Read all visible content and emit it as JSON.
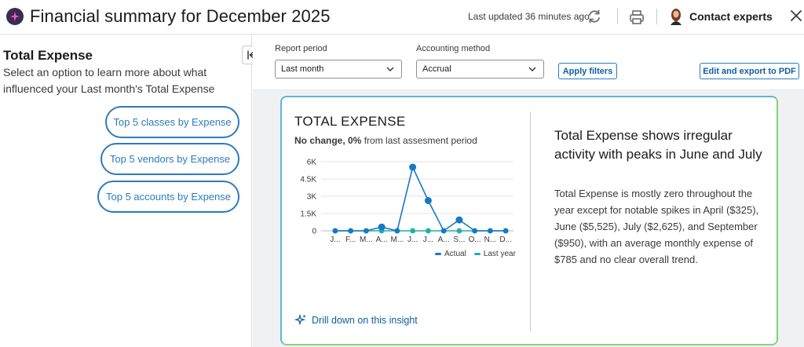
{
  "header": {
    "title": "Financial summary for December 2025",
    "last_updated": "Last updated 36 minutes ago",
    "contact_label": "Contact experts"
  },
  "left": {
    "heading": "Total Expense",
    "description": "Select an option to learn more about what influenced your Last month's Total Expense",
    "buttons": [
      "Top 5 classes by Expense",
      "Top 5 vendors by Expense",
      "Top 5 accounts by Expense"
    ]
  },
  "filters": {
    "report_period_label": "Report period",
    "report_period_value": "Last month",
    "accounting_method_label": "Accounting method",
    "accounting_method_value": "Accrual",
    "apply_label": "Apply filters",
    "export_label": "Edit and export to PDF"
  },
  "card": {
    "title": "TOTAL EXPENSE",
    "subtitle_bold": "No change, 0%",
    "subtitle_rest": " from last assesment period",
    "drill_label": "Drill down on this insight",
    "insight_title": "Total Expense shows irregular activity with peaks in June and July",
    "insight_body": "Total Expense is mostly zero throughout the year except for notable spikes in April ($325), June ($5,525), July ($2,625), and September ($950), with an average monthly expense of $785 and no clear overall trend."
  },
  "colors": {
    "accent": "#2c7bbf",
    "actual": "#1679c4",
    "last_year": "#19b3a8"
  },
  "chart_data": {
    "type": "line",
    "title": "TOTAL EXPENSE",
    "categories": [
      "J...",
      "F...",
      "M...",
      "A...",
      "M...",
      "J...",
      "J...",
      "A...",
      "S...",
      "O...",
      "N...",
      "D..."
    ],
    "y_tick_labels": [
      "6K",
      "4.5K",
      "3K",
      "1.5K",
      "0"
    ],
    "ylim": [
      0,
      6000
    ],
    "grid": true,
    "legend_position": "bottom-right",
    "series": [
      {
        "name": "Actual",
        "values": [
          0,
          0,
          0,
          325,
          0,
          5525,
          2625,
          0,
          950,
          0,
          0,
          0
        ]
      },
      {
        "name": "Last year",
        "values": [
          0,
          0,
          0,
          0,
          0,
          0,
          0,
          0,
          0,
          0,
          0,
          0
        ]
      }
    ]
  }
}
